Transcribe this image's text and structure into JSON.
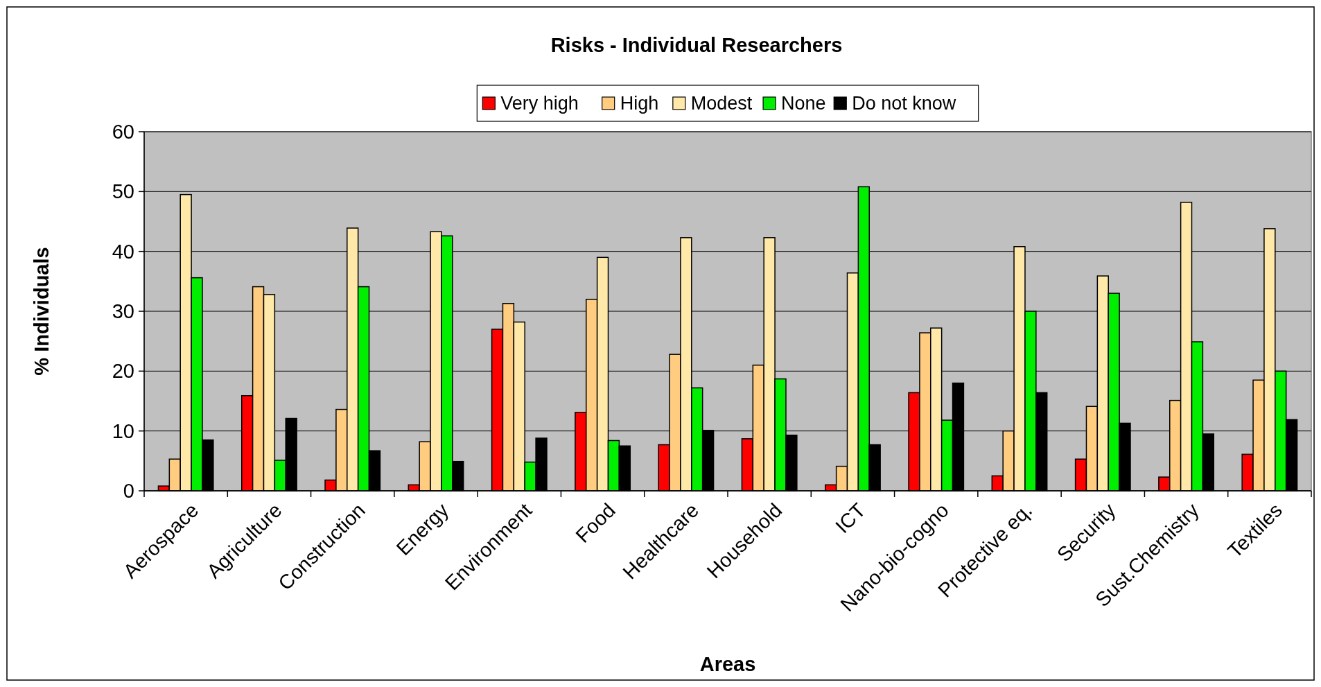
{
  "chart_data": {
    "type": "bar",
    "title": "Risks - Individual Researchers",
    "xlabel": "Areas",
    "ylabel": "% Individuals",
    "categories": [
      "Aerospace",
      "Agriculture",
      "Construction",
      "Energy",
      "Environment",
      "Food",
      "Healthcare",
      "Household",
      "ICT",
      "Nano-bio-cogno",
      "Protective eq.",
      "Security",
      "Sust.Chemistry",
      "Textiles"
    ],
    "series": [
      {
        "name": "Very high",
        "color": "#ff0000",
        "values": [
          0.8,
          15.9,
          1.8,
          1.0,
          27.0,
          13.1,
          7.7,
          8.7,
          1.0,
          16.4,
          2.5,
          5.3,
          2.3,
          6.1
        ]
      },
      {
        "name": "High",
        "color": "#ffcc80",
        "values": [
          5.3,
          34.1,
          13.6,
          8.2,
          31.3,
          32.0,
          22.8,
          21.0,
          4.1,
          26.4,
          10.0,
          14.1,
          15.1,
          18.5
        ]
      },
      {
        "name": "Modest",
        "color": "#ffe8a8",
        "values": [
          49.5,
          32.8,
          43.9,
          43.3,
          28.2,
          39.0,
          42.3,
          42.3,
          36.4,
          27.2,
          40.8,
          35.9,
          48.2,
          43.8
        ]
      },
      {
        "name": "None",
        "color": "#00ee00",
        "values": [
          35.6,
          5.1,
          34.1,
          42.6,
          4.8,
          8.4,
          17.2,
          18.7,
          50.8,
          11.8,
          30.0,
          33.0,
          24.9,
          20.0
        ]
      },
      {
        "name": "Do not know",
        "color": "#000000",
        "values": [
          8.5,
          12.1,
          6.7,
          4.9,
          8.8,
          7.5,
          10.1,
          9.3,
          7.7,
          18.0,
          16.4,
          11.3,
          9.5,
          11.9
        ]
      }
    ],
    "ylim": [
      0,
      60
    ],
    "yticks": [
      0,
      10,
      20,
      30,
      40,
      50,
      60
    ],
    "grid": "y",
    "legend": "top"
  }
}
